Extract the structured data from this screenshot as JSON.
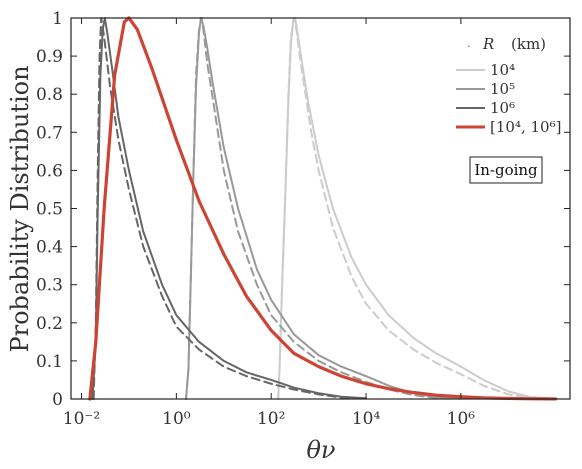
{
  "chart_data": {
    "type": "line",
    "xlabel": "θν",
    "ylabel": "Probability Distribution",
    "xscale": "log",
    "xlim": [
      0.006,
      200000000
    ],
    "ylim": [
      0,
      1
    ],
    "xticks": [
      {
        "value": 0.01,
        "label": "10⁻²"
      },
      {
        "value": 1,
        "label": "10⁰"
      },
      {
        "value": 100,
        "label": "10²"
      },
      {
        "value": 10000,
        "label": "10⁴"
      },
      {
        "value": 1000000,
        "label": "10⁶"
      }
    ],
    "yticks": [
      {
        "value": 0,
        "label": "0"
      },
      {
        "value": 0.1,
        "label": "0.1"
      },
      {
        "value": 0.2,
        "label": "0.2"
      },
      {
        "value": 0.3,
        "label": "0.3"
      },
      {
        "value": 0.4,
        "label": "0.4"
      },
      {
        "value": 0.5,
        "label": "0.5"
      },
      {
        "value": 0.6,
        "label": "0.6"
      },
      {
        "value": 0.7,
        "label": "0.7"
      },
      {
        "value": 0.8,
        "label": "0.8"
      },
      {
        "value": 0.9,
        "label": "0.9"
      },
      {
        "value": 1,
        "label": "1"
      }
    ],
    "grid": false,
    "legend": {
      "placement": "top-right",
      "title_symbol": "R",
      "title_unit": "(km)",
      "entries": [
        "10⁴",
        "10⁵",
        "10⁶",
        "[10⁴, 10⁶]"
      ]
    },
    "annotation": "In-going",
    "series": [
      {
        "name": "10⁴",
        "color": "#cccccc",
        "dash": "solid",
        "points": [
          [
            140,
            0
          ],
          [
            150,
            0.08
          ],
          [
            170,
            0.3
          ],
          [
            200,
            0.55
          ],
          [
            230,
            0.78
          ],
          [
            260,
            0.93
          ],
          [
            290,
            0.99
          ],
          [
            315,
            1.0
          ],
          [
            340,
            0.98
          ],
          [
            380,
            0.94
          ],
          [
            450,
            0.88
          ],
          [
            600,
            0.78
          ],
          [
            1000,
            0.64
          ],
          [
            2000,
            0.5
          ],
          [
            5000,
            0.37
          ],
          [
            10000,
            0.3
          ],
          [
            30000,
            0.22
          ],
          [
            100000,
            0.16
          ],
          [
            300000,
            0.12
          ],
          [
            1000000,
            0.085
          ],
          [
            3000000,
            0.05
          ],
          [
            10000000,
            0.02
          ],
          [
            30000000,
            0.005
          ],
          [
            100000000,
            0.001
          ]
        ]
      },
      {
        "name": "",
        "color": "#cccccc",
        "dash": "dashed",
        "points": [
          [
            140,
            0
          ],
          [
            150,
            0.08
          ],
          [
            170,
            0.3
          ],
          [
            200,
            0.55
          ],
          [
            230,
            0.8
          ],
          [
            260,
            0.95
          ],
          [
            300,
            1.0
          ],
          [
            340,
            0.97
          ],
          [
            400,
            0.9
          ],
          [
            500,
            0.82
          ],
          [
            700,
            0.7
          ],
          [
            1000,
            0.6
          ],
          [
            2000,
            0.45
          ],
          [
            5000,
            0.32
          ],
          [
            10000,
            0.25
          ],
          [
            30000,
            0.18
          ],
          [
            100000,
            0.13
          ],
          [
            300000,
            0.095
          ],
          [
            1000000,
            0.065
          ],
          [
            3000000,
            0.035
          ],
          [
            10000000,
            0.012
          ],
          [
            30000000,
            0.003
          ],
          [
            100000000,
            0.001
          ]
        ]
      },
      {
        "name": "10⁵",
        "color": "#999999",
        "dash": "solid",
        "points": [
          [
            1.6,
            0
          ],
          [
            1.8,
            0.08
          ],
          [
            2.0,
            0.3
          ],
          [
            2.3,
            0.6
          ],
          [
            2.6,
            0.82
          ],
          [
            3.0,
            0.96
          ],
          [
            3.3,
            1.0
          ],
          [
            3.7,
            0.98
          ],
          [
            4.5,
            0.92
          ],
          [
            6,
            0.82
          ],
          [
            10,
            0.66
          ],
          [
            20,
            0.5
          ],
          [
            50,
            0.34
          ],
          [
            100,
            0.26
          ],
          [
            300,
            0.17
          ],
          [
            1000,
            0.115
          ],
          [
            3000,
            0.085
          ],
          [
            10000,
            0.06
          ],
          [
            30000,
            0.035
          ],
          [
            100000,
            0.015
          ],
          [
            300000,
            0.005
          ],
          [
            1000000,
            0.001
          ]
        ]
      },
      {
        "name": "",
        "color": "#999999",
        "dash": "dashed",
        "points": [
          [
            1.6,
            0
          ],
          [
            1.8,
            0.08
          ],
          [
            2.0,
            0.3
          ],
          [
            2.3,
            0.6
          ],
          [
            2.6,
            0.85
          ],
          [
            3.0,
            0.97
          ],
          [
            3.4,
            1.0
          ],
          [
            3.8,
            0.96
          ],
          [
            4.5,
            0.88
          ],
          [
            6,
            0.78
          ],
          [
            10,
            0.6
          ],
          [
            20,
            0.44
          ],
          [
            50,
            0.3
          ],
          [
            100,
            0.22
          ],
          [
            300,
            0.15
          ],
          [
            1000,
            0.1
          ],
          [
            3000,
            0.07
          ],
          [
            10000,
            0.045
          ],
          [
            30000,
            0.025
          ],
          [
            100000,
            0.01
          ],
          [
            300000,
            0.003
          ],
          [
            1000000,
            0.001
          ]
        ]
      },
      {
        "name": "10⁶",
        "color": "#666666",
        "dash": "solid",
        "points": [
          [
            0.017,
            0
          ],
          [
            0.02,
            0.15
          ],
          [
            0.022,
            0.5
          ],
          [
            0.025,
            0.85
          ],
          [
            0.028,
            0.97
          ],
          [
            0.031,
            1.0
          ],
          [
            0.035,
            0.96
          ],
          [
            0.045,
            0.86
          ],
          [
            0.06,
            0.74
          ],
          [
            0.1,
            0.6
          ],
          [
            0.2,
            0.44
          ],
          [
            0.5,
            0.3
          ],
          [
            1,
            0.22
          ],
          [
            3,
            0.15
          ],
          [
            10,
            0.1
          ],
          [
            30,
            0.07
          ],
          [
            100,
            0.05
          ],
          [
            300,
            0.03
          ],
          [
            1000,
            0.015
          ],
          [
            3000,
            0.006
          ],
          [
            10000,
            0.002
          ]
        ]
      },
      {
        "name": "",
        "color": "#666666",
        "dash": "dashed",
        "points": [
          [
            0.018,
            0
          ],
          [
            0.02,
            0.2
          ],
          [
            0.022,
            0.6
          ],
          [
            0.024,
            0.9
          ],
          [
            0.026,
            1.0
          ],
          [
            0.03,
            0.95
          ],
          [
            0.04,
            0.82
          ],
          [
            0.06,
            0.68
          ],
          [
            0.1,
            0.55
          ],
          [
            0.2,
            0.4
          ],
          [
            0.5,
            0.27
          ],
          [
            1,
            0.19
          ],
          [
            3,
            0.13
          ],
          [
            10,
            0.085
          ],
          [
            30,
            0.06
          ],
          [
            100,
            0.04
          ],
          [
            300,
            0.025
          ],
          [
            1000,
            0.012
          ],
          [
            3000,
            0.004
          ],
          [
            10000,
            0.001
          ]
        ]
      },
      {
        "name": "[10⁴, 10⁶]",
        "color": "#cc4433",
        "dash": "solid",
        "points": [
          [
            0.015,
            0
          ],
          [
            0.02,
            0.15
          ],
          [
            0.03,
            0.5
          ],
          [
            0.05,
            0.85
          ],
          [
            0.08,
            0.99
          ],
          [
            0.1,
            1.0
          ],
          [
            0.15,
            0.97
          ],
          [
            0.3,
            0.87
          ],
          [
            1,
            0.68
          ],
          [
            3,
            0.52
          ],
          [
            10,
            0.38
          ],
          [
            30,
            0.27
          ],
          [
            100,
            0.18
          ],
          [
            300,
            0.12
          ],
          [
            1000,
            0.085
          ],
          [
            3000,
            0.06
          ],
          [
            10000,
            0.04
          ],
          [
            30000,
            0.027
          ],
          [
            100000,
            0.017
          ],
          [
            300000,
            0.01
          ],
          [
            1000000,
            0.006
          ],
          [
            3000000,
            0.003
          ],
          [
            10000000,
            0.0015
          ],
          [
            30000000,
            0.0005
          ],
          [
            100000000,
            0.0002
          ]
        ]
      }
    ]
  }
}
